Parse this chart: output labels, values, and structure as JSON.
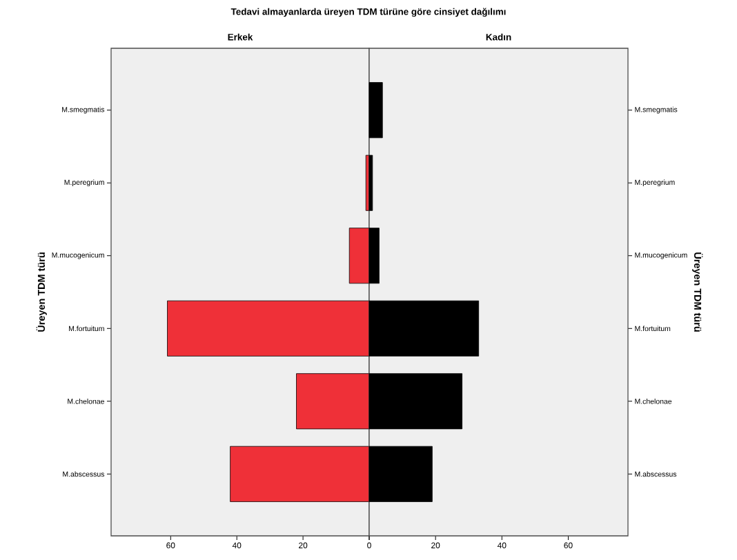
{
  "chart_data": [
    {
      "type": "bar",
      "orientation": "horizontal",
      "title": "Tedavi almayanlarda üreyen TDM türüne göre cinsiyet dağılımı",
      "subtitle": "Erkek",
      "ylabel": "Üreyen TDM türü",
      "categories": [
        "M.smegmatis",
        "M.peregrium",
        "M.mucogenicum",
        "M.fortuitum",
        "M.chelonae",
        "M.abscessus"
      ],
      "values": [
        null,
        1,
        6,
        61,
        22,
        42
      ],
      "color": "#ef3038",
      "xlim": [
        78,
        0
      ],
      "xticks": [
        60,
        40,
        20,
        0
      ]
    },
    {
      "type": "bar",
      "orientation": "horizontal",
      "subtitle": "Kadın",
      "ylabel": "Üreyen TDM türü",
      "categories": [
        "M.smegmatis",
        "M.peregrium",
        "M.mucogenicum",
        "M.fortuitum",
        "M.chelonae",
        "M.abscessus"
      ],
      "values": [
        4,
        1,
        3,
        33,
        28,
        19
      ],
      "color": "#000000",
      "xlim": [
        0,
        78
      ],
      "xticks": [
        {
          "value": 0,
          "label": null
        },
        20,
        40,
        60
      ]
    }
  ]
}
